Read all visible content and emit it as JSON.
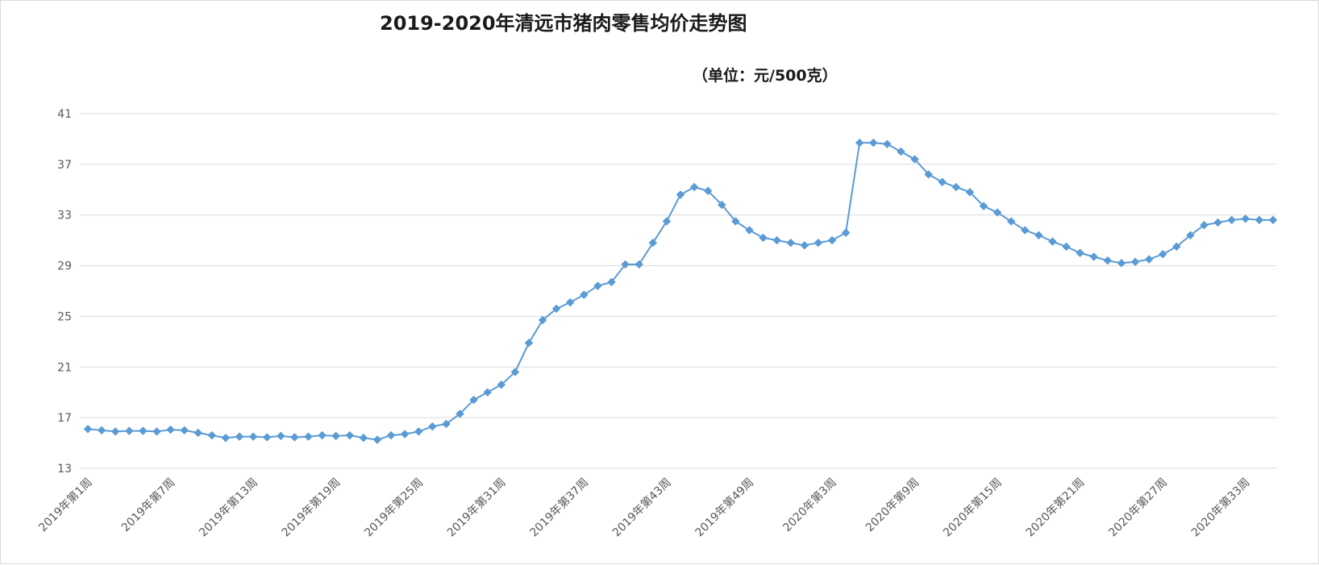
{
  "chart_data": {
    "type": "line",
    "title": "2019-2020年清远市猪肉零售均价走势图",
    "subtitle": "（单位：元/500克）",
    "xlabel": "",
    "ylabel": "",
    "ylim": [
      13,
      41
    ],
    "yticks": [
      13,
      17,
      21,
      25,
      29,
      33,
      37,
      41
    ],
    "grid": true,
    "legend": "none",
    "x_tick_labels": [
      "2019年第1周",
      "2019年第7周",
      "2019年第13周",
      "2019年第19周",
      "2019年第25周",
      "2019年第31周",
      "2019年第37周",
      "2019年第43周",
      "2019年第49周",
      "2020年第3周",
      "2020年第9周",
      "2020年第15周",
      "2020年第21周",
      "2020年第27周",
      "2020年第33周"
    ],
    "series": [
      {
        "color": "#5b9bd5",
        "values": [
          16.1,
          16.0,
          15.9,
          15.95,
          15.95,
          15.9,
          16.05,
          16.0,
          15.8,
          15.6,
          15.4,
          15.5,
          15.5,
          15.45,
          15.55,
          15.45,
          15.5,
          15.6,
          15.55,
          15.6,
          15.4,
          15.25,
          15.6,
          15.7,
          15.9,
          16.3,
          16.5,
          17.3,
          18.4,
          19.0,
          19.6,
          20.6,
          22.9,
          24.7,
          25.6,
          26.1,
          26.7,
          27.4,
          27.7,
          29.1,
          29.1,
          30.8,
          32.5,
          34.6,
          35.2,
          34.9,
          33.8,
          32.5,
          31.8,
          31.2,
          31.0,
          30.8,
          30.6,
          30.8,
          31.0,
          31.6,
          38.7,
          38.7,
          38.6,
          38.0,
          37.4,
          36.2,
          35.6,
          35.2,
          34.8,
          33.7,
          33.2,
          32.5,
          31.8,
          31.4,
          30.9,
          30.5,
          30.0,
          29.7,
          29.4,
          29.2,
          29.3,
          29.5,
          29.9,
          30.5,
          31.4,
          32.2,
          32.4,
          32.6,
          32.7,
          32.6,
          32.6
        ]
      }
    ]
  }
}
